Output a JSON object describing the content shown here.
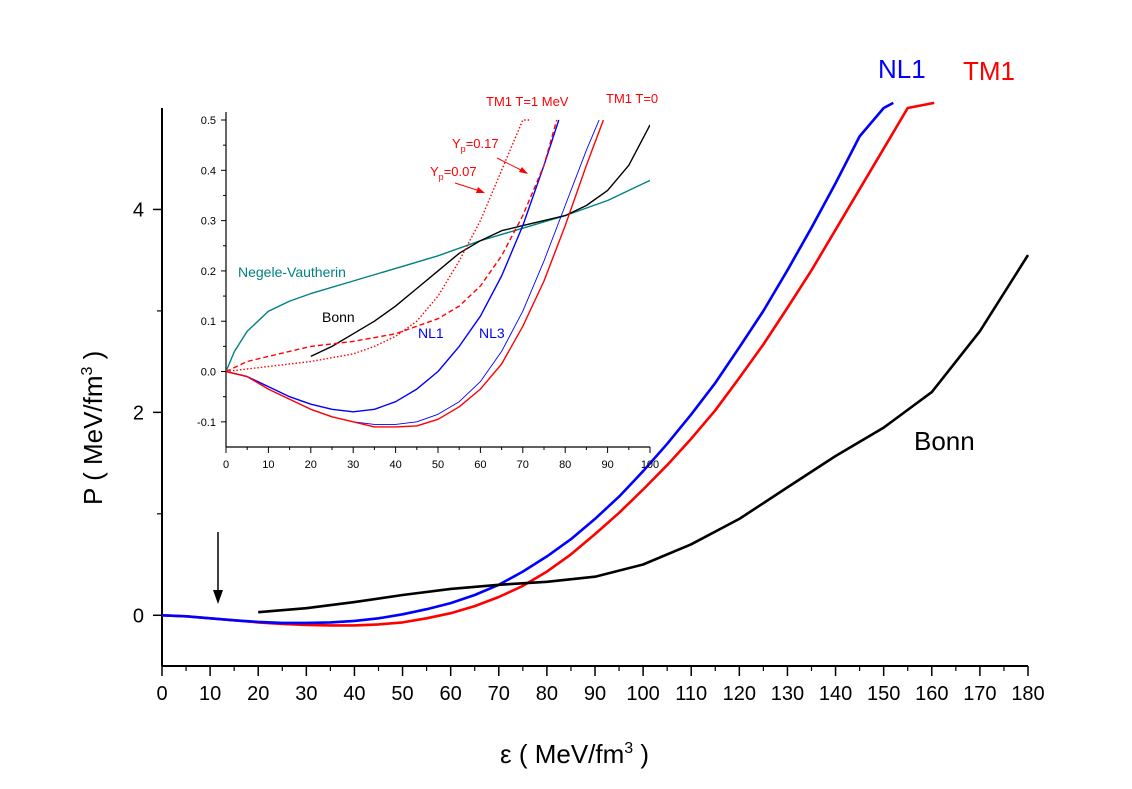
{
  "chart_data": [
    {
      "id": "main",
      "type": "line",
      "xlabel": "ε ( MeV/fm",
      "xlabel_sup": "3",
      "xlabel_end": " )",
      "ylabel": "P ( MeV/fm",
      "ylabel_sup": "3",
      "ylabel_end": " )",
      "xlim": [
        0,
        180
      ],
      "ylim": [
        -0.5,
        5
      ],
      "x_ticks": [
        0,
        10,
        20,
        30,
        40,
        50,
        60,
        70,
        80,
        90,
        100,
        110,
        120,
        130,
        140,
        150,
        160,
        170,
        180
      ],
      "y_ticks": [
        0,
        2,
        4
      ],
      "y_minor_ticks": [
        1,
        3
      ],
      "arrow_at_x": 12,
      "series": [
        {
          "name": "TM1",
          "label": "TM1",
          "color": "#ff0000",
          "x": [
            0,
            5,
            10,
            15,
            20,
            25,
            30,
            35,
            40,
            45,
            50,
            55,
            60,
            65,
            70,
            75,
            80,
            85,
            90,
            95,
            100,
            105,
            110,
            115,
            120,
            125,
            130,
            135,
            140,
            145,
            150,
            155,
            160.5
          ],
          "y": [
            0,
            -0.01,
            -0.03,
            -0.05,
            -0.07,
            -0.085,
            -0.095,
            -0.1,
            -0.1,
            -0.09,
            -0.07,
            -0.03,
            0.02,
            0.09,
            0.18,
            0.29,
            0.43,
            0.6,
            0.8,
            1.01,
            1.24,
            1.48,
            1.74,
            2.02,
            2.34,
            2.67,
            3.03,
            3.4,
            3.8,
            4.2,
            4.6,
            5.0,
            5.05
          ]
        },
        {
          "name": "NL1",
          "label": "NL1",
          "color": "#0000ff",
          "x": [
            0,
            5,
            10,
            15,
            20,
            25,
            30,
            35,
            40,
            45,
            50,
            55,
            60,
            65,
            70,
            75,
            80,
            85,
            90,
            95,
            100,
            105,
            110,
            115,
            120,
            125,
            130,
            135,
            140,
            145,
            150,
            152
          ],
          "y": [
            0,
            -0.01,
            -0.03,
            -0.05,
            -0.065,
            -0.075,
            -0.075,
            -0.07,
            -0.055,
            -0.03,
            0.01,
            0.06,
            0.12,
            0.2,
            0.3,
            0.43,
            0.58,
            0.75,
            0.95,
            1.17,
            1.42,
            1.69,
            1.98,
            2.29,
            2.64,
            3.0,
            3.4,
            3.82,
            4.26,
            4.72,
            5.0,
            5.05
          ]
        },
        {
          "name": "Bonn",
          "label": "Bonn",
          "color": "#000000",
          "x": [
            20,
            30,
            40,
            50,
            60,
            70,
            80,
            90,
            100,
            110,
            120,
            130,
            140,
            150,
            160,
            170,
            180
          ],
          "y": [
            0.03,
            0.07,
            0.13,
            0.2,
            0.26,
            0.3,
            0.33,
            0.38,
            0.5,
            0.7,
            0.95,
            1.26,
            1.57,
            1.85,
            2.2,
            2.8,
            3.55
          ]
        }
      ]
    },
    {
      "id": "inset",
      "type": "line",
      "xlim": [
        0,
        100
      ],
      "ylim": [
        -0.15,
        0.5
      ],
      "x_ticks": [
        0,
        10,
        20,
        30,
        40,
        50,
        60,
        70,
        80,
        90,
        100
      ],
      "y_ticks": [
        -0.1,
        0.0,
        0.1,
        0.2,
        0.3,
        0.4,
        0.5
      ],
      "y_tick_labels": [
        "-0.1",
        "0.0",
        "0.1",
        "0.2",
        "0.3",
        "0.4",
        "0.5"
      ],
      "series": [
        {
          "name": "Negele-Vautherin",
          "label": "Negele-Vautherin",
          "color": "#008080",
          "style": "solid",
          "x": [
            0,
            2,
            5,
            10,
            15,
            20,
            30,
            40,
            50,
            60,
            70,
            80,
            90,
            100
          ],
          "y": [
            0,
            0.04,
            0.08,
            0.12,
            0.14,
            0.155,
            0.18,
            0.205,
            0.23,
            0.26,
            0.285,
            0.31,
            0.34,
            0.38
          ]
        },
        {
          "name": "Bonn",
          "label": "Bonn",
          "color": "#000000",
          "style": "solid",
          "x": [
            20,
            25,
            30,
            35,
            40,
            45,
            50,
            55,
            60,
            65,
            70,
            75,
            80,
            85,
            90,
            95,
            100
          ],
          "y": [
            0.03,
            0.05,
            0.075,
            0.1,
            0.13,
            0.165,
            0.2,
            0.235,
            0.26,
            0.28,
            0.29,
            0.3,
            0.31,
            0.33,
            0.36,
            0.41,
            0.49
          ]
        },
        {
          "name": "NL1",
          "label": "NL1",
          "color": "#0000ff",
          "style": "solid",
          "width": 1.4,
          "x": [
            0,
            5,
            10,
            15,
            20,
            25,
            30,
            35,
            40,
            45,
            50,
            55,
            60,
            65,
            70,
            75,
            78.5
          ],
          "y": [
            0,
            -0.01,
            -0.03,
            -0.05,
            -0.065,
            -0.075,
            -0.08,
            -0.075,
            -0.06,
            -0.035,
            0.0,
            0.05,
            0.11,
            0.19,
            0.29,
            0.41,
            0.5
          ]
        },
        {
          "name": "NL3",
          "label": "NL3",
          "color": "#0000ff",
          "style": "solid",
          "width": 0.9,
          "x": [
            0,
            5,
            10,
            15,
            20,
            25,
            30,
            35,
            40,
            45,
            50,
            55,
            60,
            65,
            70,
            75,
            80,
            85,
            88
          ],
          "y": [
            0,
            -0.01,
            -0.035,
            -0.055,
            -0.075,
            -0.09,
            -0.1,
            -0.105,
            -0.105,
            -0.1,
            -0.085,
            -0.06,
            -0.02,
            0.04,
            0.12,
            0.22,
            0.33,
            0.44,
            0.5
          ]
        },
        {
          "name": "TM1 T=0",
          "label": "TM1 T=0",
          "color": "#ff0000",
          "style": "solid",
          "width": 1.4,
          "x": [
            0,
            5,
            10,
            15,
            20,
            25,
            30,
            35,
            40,
            45,
            50,
            55,
            60,
            65,
            70,
            75,
            80,
            85,
            89
          ],
          "y": [
            0,
            -0.01,
            -0.035,
            -0.055,
            -0.075,
            -0.09,
            -0.1,
            -0.11,
            -0.11,
            -0.108,
            -0.095,
            -0.07,
            -0.035,
            0.015,
            0.09,
            0.18,
            0.29,
            0.41,
            0.5
          ]
        },
        {
          "name": "TM1 T=1 MeV, Yp=0.17",
          "label": "",
          "color": "#ff0000",
          "style": "dashed",
          "x": [
            0,
            5,
            10,
            20,
            30,
            40,
            50,
            55,
            60,
            65,
            70,
            75,
            78
          ],
          "y": [
            0,
            0.02,
            0.03,
            0.05,
            0.06,
            0.075,
            0.105,
            0.13,
            0.17,
            0.23,
            0.31,
            0.41,
            0.5
          ]
        },
        {
          "name": "TM1 T=1 MeV, Yp=0.07",
          "label": "",
          "color": "#ff0000",
          "style": "dotted",
          "x": [
            0,
            5,
            10,
            20,
            30,
            35,
            40,
            45,
            50,
            55,
            60,
            65,
            70,
            72
          ],
          "y": [
            0,
            0.005,
            0.01,
            0.02,
            0.035,
            0.05,
            0.07,
            0.1,
            0.15,
            0.22,
            0.3,
            0.4,
            0.5,
            0.5
          ]
        }
      ],
      "annotations": [
        {
          "text": "TM1 T=1 MeV",
          "color": "#ff0000"
        },
        {
          "text": "TM1 T=0",
          "color": "#ff0000"
        },
        {
          "text": "Y",
          "sub": "p",
          "value": "=0.17",
          "color": "#ff0000"
        },
        {
          "text": "Y",
          "sub": "p",
          "value": "=0.07",
          "color": "#ff0000"
        }
      ]
    }
  ]
}
